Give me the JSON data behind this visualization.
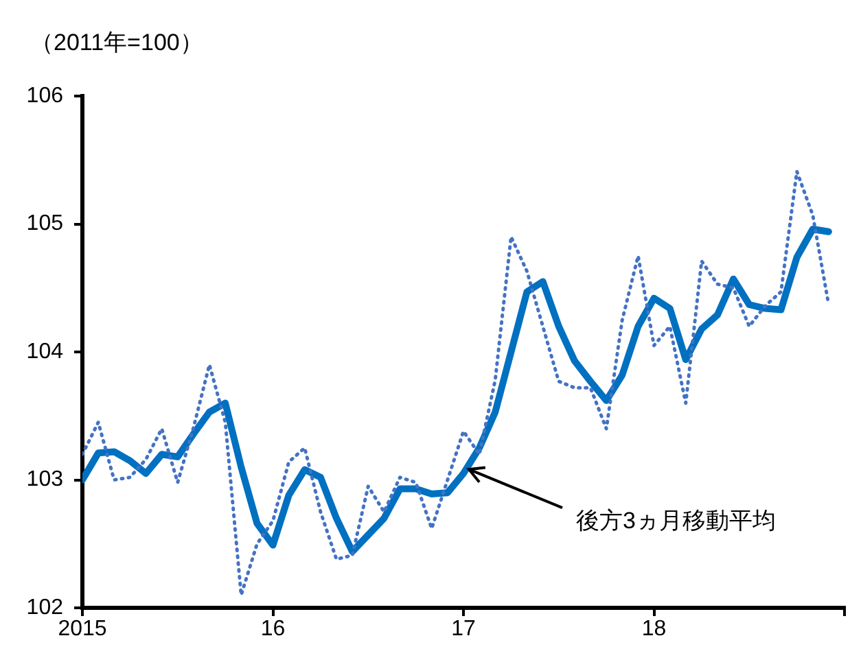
{
  "chart_data": {
    "type": "line",
    "ylabel": "（2011年=100）",
    "x": [
      "2015-01",
      "2015-02",
      "2015-03",
      "2015-04",
      "2015-05",
      "2015-06",
      "2015-07",
      "2015-08",
      "2015-09",
      "2015-10",
      "2015-11",
      "2015-12",
      "2016-01",
      "2016-02",
      "2016-03",
      "2016-04",
      "2016-05",
      "2016-06",
      "2016-07",
      "2016-08",
      "2016-09",
      "2016-10",
      "2016-11",
      "2016-12",
      "2017-01",
      "2017-02",
      "2017-03",
      "2017-04",
      "2017-05",
      "2017-06",
      "2017-07",
      "2017-08",
      "2017-09",
      "2017-10",
      "2017-11",
      "2017-12",
      "2018-01",
      "2018-02",
      "2018-03",
      "2018-04",
      "2018-05",
      "2018-06",
      "2018-07",
      "2018-08",
      "2018-09",
      "2018-10",
      "2018-11",
      "2018-12"
    ],
    "series": [
      {
        "color": "#4472c4",
        "line_style": "dotted",
        "values": [
          103.2,
          103.45,
          103.0,
          103.02,
          103.16,
          103.4,
          102.98,
          103.41,
          103.9,
          103.45,
          102.1,
          102.5,
          102.68,
          103.14,
          103.25,
          102.75,
          102.38,
          102.41,
          102.95,
          102.75,
          103.02,
          102.98,
          102.62,
          103.0,
          103.38,
          103.2,
          103.78,
          104.9,
          104.63,
          104.2,
          103.77,
          103.72,
          103.72,
          103.4,
          104.25,
          104.75,
          104.05,
          104.2,
          103.6,
          104.71,
          104.53,
          104.5,
          104.2,
          104.36,
          104.47,
          105.41,
          105.07,
          104.37
        ]
      },
      {
        "color": "#0070c0",
        "line_style": "solid",
        "values": [
          103.0,
          103.21,
          103.22,
          103.15,
          103.05,
          103.2,
          103.18,
          103.36,
          103.53,
          103.6,
          103.1,
          102.66,
          102.49,
          102.88,
          103.08,
          103.02,
          102.7,
          102.44,
          102.57,
          102.7,
          102.93,
          102.93,
          102.89,
          102.9,
          103.05,
          103.25,
          103.53,
          104.0,
          104.47,
          104.55,
          104.2,
          103.93,
          103.77,
          103.62,
          103.82,
          104.2,
          104.42,
          104.34,
          103.94,
          104.18,
          104.29,
          104.57,
          104.37,
          104.34,
          104.33,
          104.74,
          104.96,
          104.94
        ]
      }
    ],
    "xlim": [
      "2015-01",
      "2019-01"
    ],
    "xticks": [
      {
        "value": "2015-01",
        "label": "2015"
      },
      {
        "value": "2016-01",
        "label": "16"
      },
      {
        "value": "2017-01",
        "label": "17"
      },
      {
        "value": "2018-01",
        "label": "18"
      },
      {
        "value": "2019-01",
        "label": null
      }
    ],
    "ylim": [
      102,
      106
    ],
    "yticks": [
      102,
      103,
      104,
      105,
      106
    ],
    "annotations": [
      {
        "text": "後方3ヵ月移動平均",
        "x": "2017-01",
        "y": 103.05
      }
    ],
    "grid": false,
    "legend": false,
    "marker": "none"
  }
}
